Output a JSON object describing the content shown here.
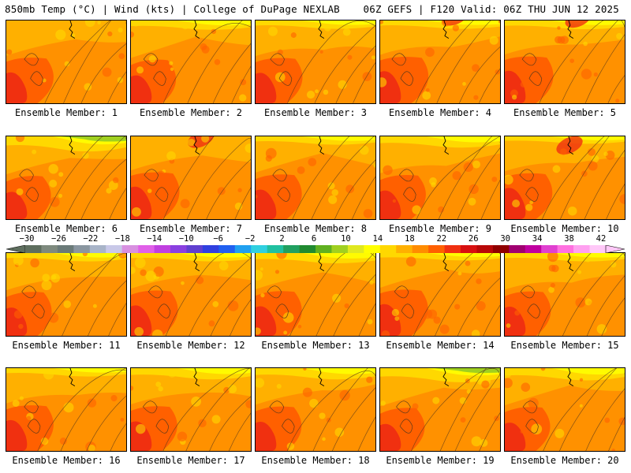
{
  "header": {
    "left": "850mb Temp (°C) | Wind (kts) | College of DuPage NEXLAB",
    "right": "06Z GEFS | F120 Valid: 06Z THU JUN 12 2025"
  },
  "members": [
    {
      "label": "Ensemble Member: 1",
      "warmth": 0.72,
      "cool_band": 0.0
    },
    {
      "label": "Ensemble Member: 2",
      "warmth": 0.58,
      "cool_band": 0.15
    },
    {
      "label": "Ensemble Member: 3",
      "warmth": 0.7,
      "cool_band": 0.1
    },
    {
      "label": "Ensemble Member: 4",
      "warmth": 0.78,
      "cool_band": 0.1
    },
    {
      "label": "Ensemble Member: 5",
      "warmth": 0.8,
      "cool_band": 0.12
    },
    {
      "label": "Ensemble Member: 6",
      "warmth": 0.55,
      "cool_band": 0.45
    },
    {
      "label": "Ensemble Member: 7",
      "warmth": 0.8,
      "cool_band": 0.0
    },
    {
      "label": "Ensemble Member: 8",
      "warmth": 0.66,
      "cool_band": 0.1
    },
    {
      "label": "Ensemble Member: 9",
      "warmth": 0.62,
      "cool_band": 0.25
    },
    {
      "label": "Ensemble Member: 10",
      "warmth": 0.74,
      "cool_band": 0.05
    },
    {
      "label": "Ensemble Member: 11",
      "warmth": 0.6,
      "cool_band": 0.1
    },
    {
      "label": "Ensemble Member: 12",
      "warmth": 0.7,
      "cool_band": 0.1
    },
    {
      "label": "Ensemble Member: 13",
      "warmth": 0.66,
      "cool_band": 0.2
    },
    {
      "label": "Ensemble Member: 14",
      "warmth": 0.76,
      "cool_band": 0.05
    },
    {
      "label": "Ensemble Member: 15",
      "warmth": 0.64,
      "cool_band": 0.1
    },
    {
      "label": "Ensemble Member: 16",
      "warmth": 0.72,
      "cool_band": 0.1
    },
    {
      "label": "Ensemble Member: 17",
      "warmth": 0.66,
      "cool_band": 0.25
    },
    {
      "label": "Ensemble Member: 18",
      "warmth": 0.64,
      "cool_band": 0.25
    },
    {
      "label": "Ensemble Member: 19",
      "warmth": 0.54,
      "cool_band": 0.4
    },
    {
      "label": "Ensemble Member: 20",
      "warmth": 0.6,
      "cool_band": 0.3
    }
  ],
  "colorbar": {
    "labels": [
      "-30",
      "-26",
      "-22",
      "-18",
      "-14",
      "-10",
      "-6",
      "-2",
      "2",
      "6",
      "10",
      "14",
      "18",
      "22",
      "26",
      "30",
      "34",
      "38",
      "42"
    ],
    "colors": [
      "#5e6e5e",
      "#7e8a7e",
      "#6a7a78",
      "#8a96a0",
      "#a8b4c8",
      "#c8c8e8",
      "#d890e0",
      "#e060e8",
      "#c040e0",
      "#8a40e0",
      "#6040d0",
      "#3040e0",
      "#2060f0",
      "#20a0f0",
      "#30d0e0",
      "#20c0a0",
      "#20a060",
      "#208a30",
      "#60b020",
      "#a0d020",
      "#e0e820",
      "#ffff00",
      "#ffd800",
      "#ffb000",
      "#ff8c00",
      "#ff6000",
      "#f03010",
      "#d81010",
      "#b80808",
      "#900000",
      "#a00070",
      "#c000a0",
      "#e040d0",
      "#ff70e0",
      "#ffa0f0",
      "#ffc8f8"
    ]
  }
}
